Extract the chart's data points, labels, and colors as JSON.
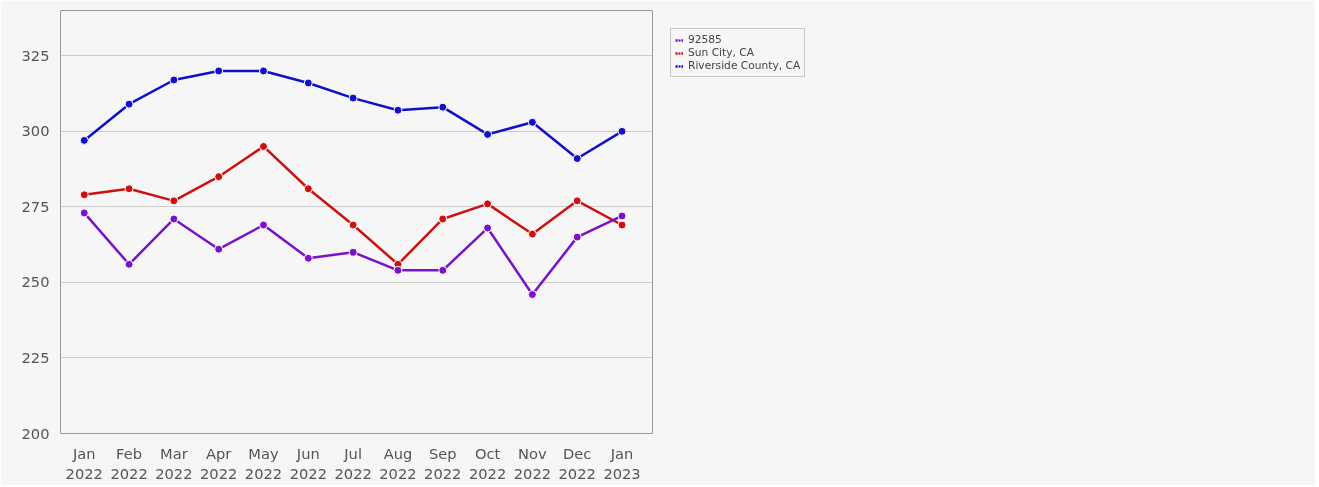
{
  "chart_data": {
    "type": "line",
    "categories": [
      "Jan\n2022",
      "Feb\n2022",
      "Mar\n2022",
      "Apr\n2022",
      "May\n2022",
      "Jun\n2022",
      "Jul\n2022",
      "Aug\n2022",
      "Sep\n2022",
      "Oct\n2022",
      "Nov\n2022",
      "Dec\n2022",
      "Jan\n2023"
    ],
    "series": [
      {
        "name": "92585",
        "color": "#7a12c8",
        "values": [
          273,
          256,
          271,
          261,
          269,
          258,
          260,
          254,
          254,
          268,
          246,
          265,
          272
        ]
      },
      {
        "name": "Sun City, CA",
        "color": "#cc1111",
        "values": [
          279,
          281,
          277,
          285,
          295,
          281,
          269,
          256,
          271,
          276,
          266,
          277,
          269
        ]
      },
      {
        "name": "Riverside County, CA",
        "color": "#1010c8",
        "values": [
          297,
          309,
          317,
          320,
          320,
          316,
          311,
          307,
          308,
          299,
          303,
          291,
          300
        ]
      }
    ],
    "ylim": [
      200,
      340
    ],
    "yticks": [
      200,
      225,
      250,
      275,
      300,
      325
    ],
    "grid": "y",
    "legend": "top right",
    "marker": "circle",
    "line_style": "solid"
  }
}
